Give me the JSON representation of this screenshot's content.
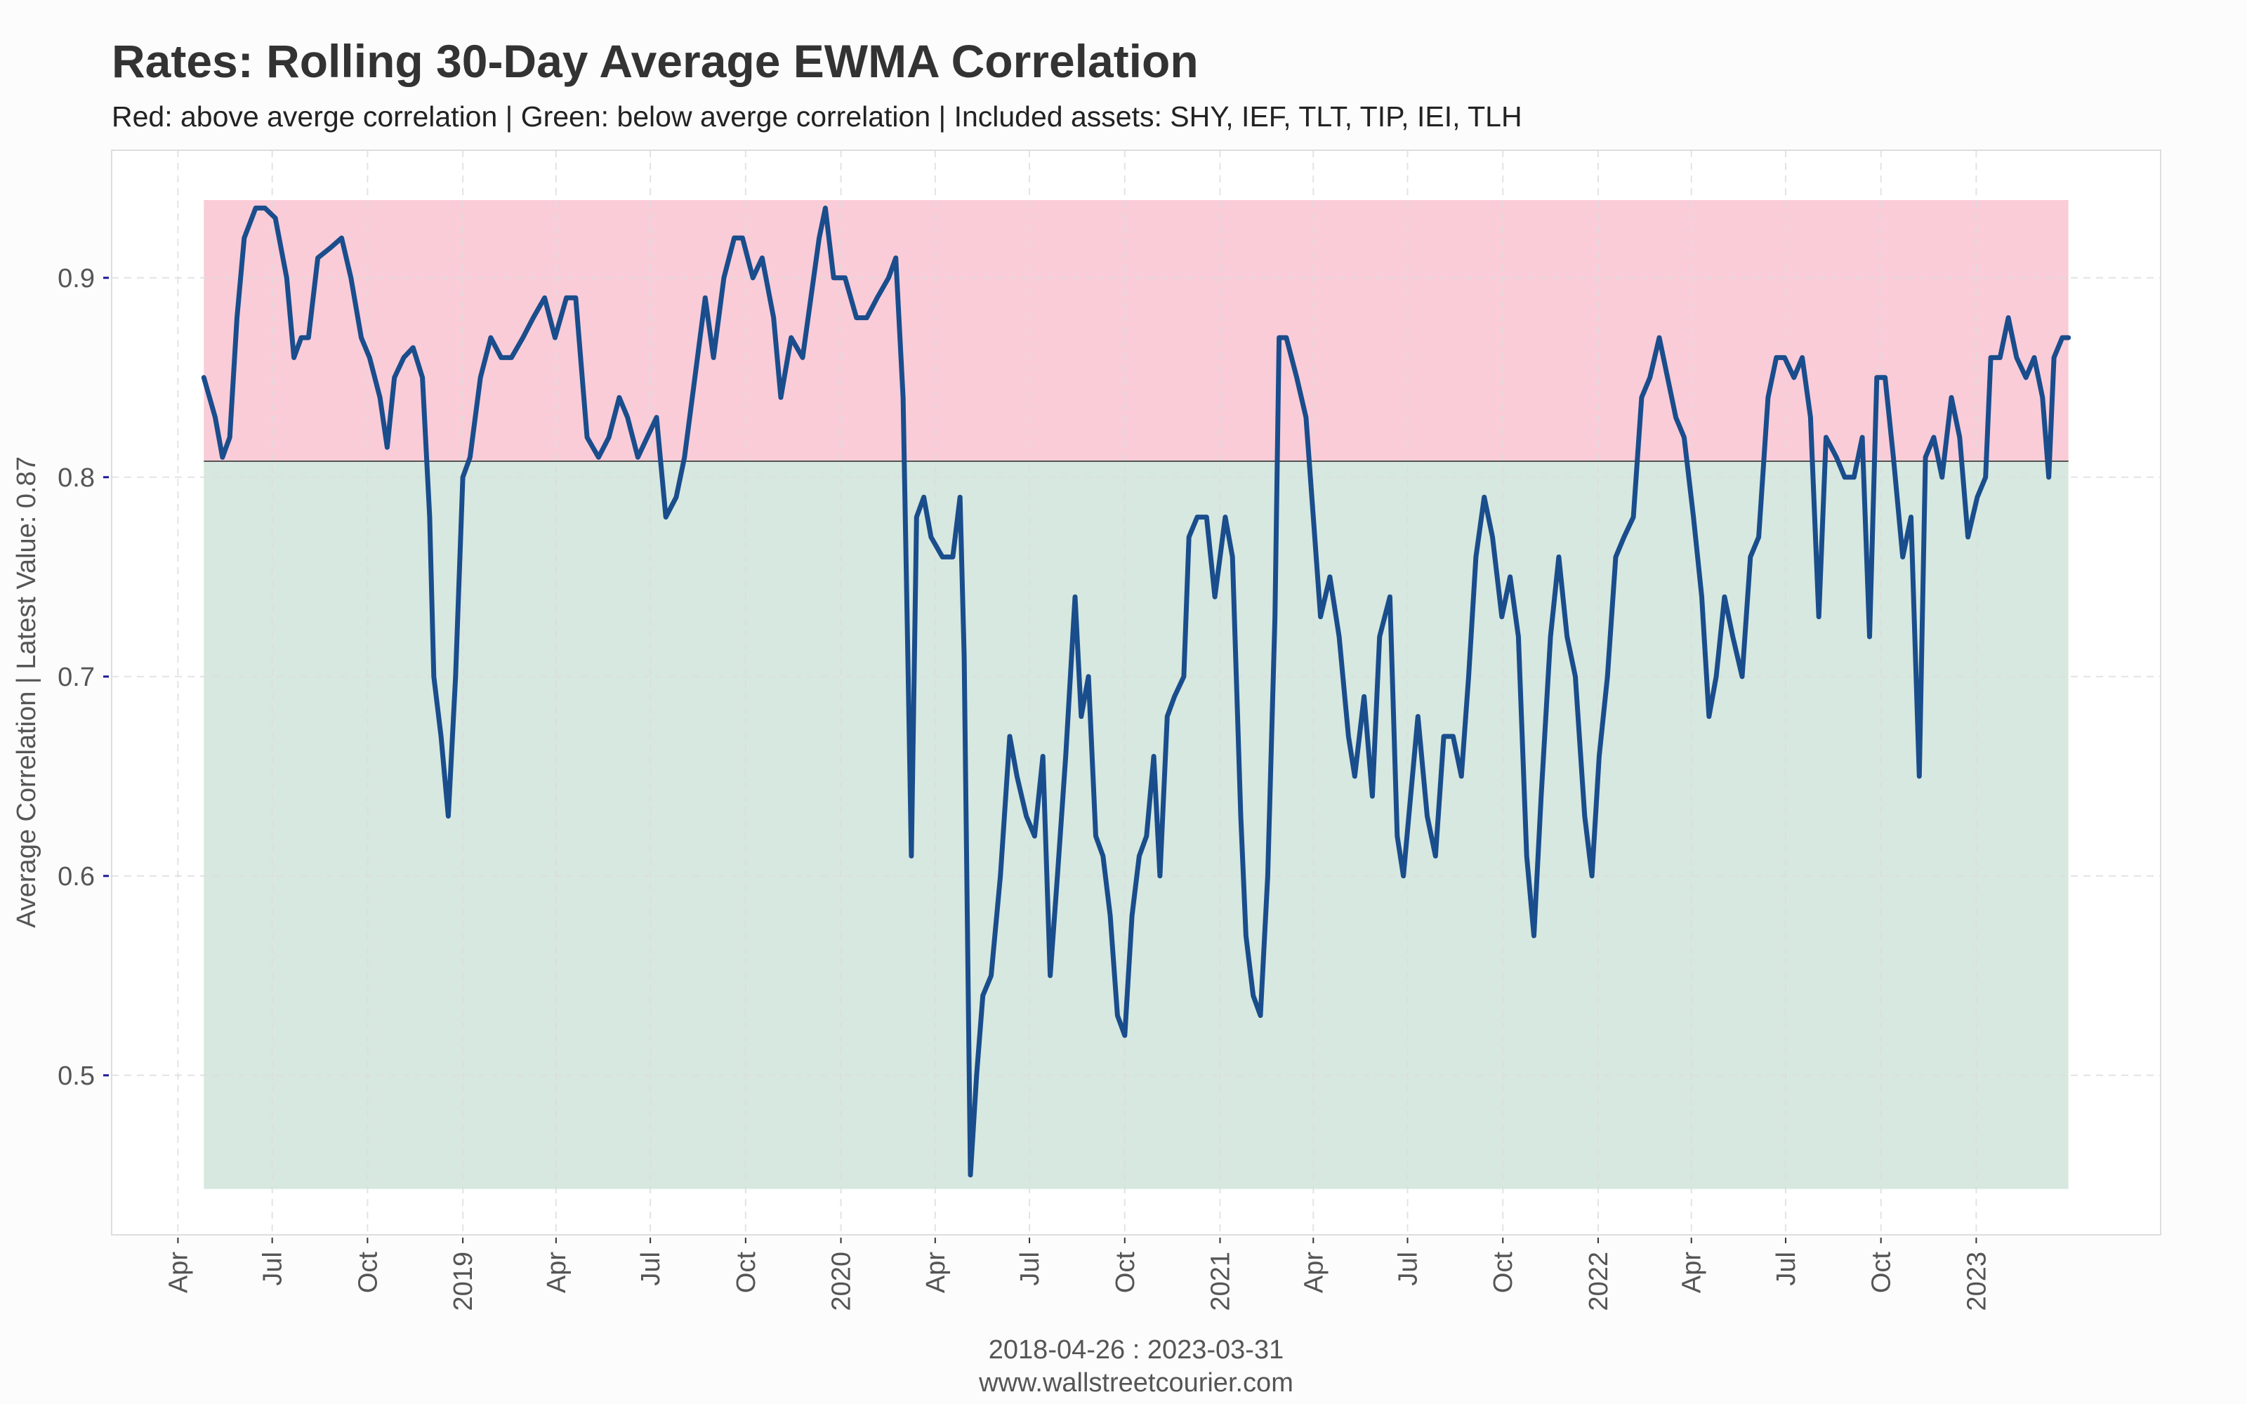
{
  "chart_data": {
    "type": "line",
    "title": "Rates: Rolling 30-Day Average EWMA Correlation",
    "subtitle": "Red: above averge correlation | Green: below averge correlation | Included assets: SHY, IEF, TLT, TIP, IEI, TLH",
    "y_label": "Average Correlation | Latest Value: 0.87",
    "caption": "2018-04-26 : 2023-03-31",
    "source": "www.wallstreetcourier.com",
    "xlim": [
      "2018-01-27",
      "2023-06-28"
    ],
    "ylim": [
      0.42,
      0.964
    ],
    "yticks": [
      0.5,
      0.6,
      0.7,
      0.8,
      0.9
    ],
    "xticks": [
      {
        "value": "2018-04-01",
        "label": "Apr"
      },
      {
        "value": "2018-07-01",
        "label": "Jul"
      },
      {
        "value": "2018-10-01",
        "label": "Oct"
      },
      {
        "value": "2019-01-01",
        "label": "2019"
      },
      {
        "value": "2019-04-01",
        "label": "Apr"
      },
      {
        "value": "2019-07-01",
        "label": "Jul"
      },
      {
        "value": "2019-10-01",
        "label": "Oct"
      },
      {
        "value": "2020-01-01",
        "label": "2020"
      },
      {
        "value": "2020-04-01",
        "label": "Apr"
      },
      {
        "value": "2020-07-01",
        "label": "Jul"
      },
      {
        "value": "2020-10-01",
        "label": "Oct"
      },
      {
        "value": "2021-01-01",
        "label": "2021"
      },
      {
        "value": "2021-04-01",
        "label": "Apr"
      },
      {
        "value": "2021-07-01",
        "label": "Jul"
      },
      {
        "value": "2021-10-01",
        "label": "Oct"
      },
      {
        "value": "2022-01-01",
        "label": "2022"
      },
      {
        "value": "2022-04-01",
        "label": "Apr"
      },
      {
        "value": "2022-07-01",
        "label": "Jul"
      },
      {
        "value": "2022-10-01",
        "label": "Oct"
      },
      {
        "value": "2023-01-01",
        "label": "2023"
      }
    ],
    "grid": true,
    "reference": {
      "average": 0.808,
      "max": 0.939,
      "min": 0.443,
      "above_color": "#f9ccd8",
      "below_color": "#d6e8df",
      "line_color": "#555555"
    },
    "color": "#1a4d8c",
    "x": [
      "2018-04-26",
      "2018-05-07",
      "2018-05-14",
      "2018-05-21",
      "2018-05-28",
      "2018-06-04",
      "2018-06-15",
      "2018-06-24",
      "2018-07-04",
      "2018-07-15",
      "2018-07-22",
      "2018-07-29",
      "2018-08-05",
      "2018-08-14",
      "2018-08-26",
      "2018-09-06",
      "2018-09-15",
      "2018-09-25",
      "2018-10-03",
      "2018-10-13",
      "2018-10-20",
      "2018-10-27",
      "2018-11-05",
      "2018-11-14",
      "2018-11-23",
      "2018-11-30",
      "2018-12-04",
      "2018-12-11",
      "2018-12-18",
      "2018-12-25",
      "2019-01-01",
      "2019-01-08",
      "2019-01-18",
      "2019-01-28",
      "2019-02-07",
      "2019-02-17",
      "2019-02-28",
      "2019-03-10",
      "2019-03-21",
      "2019-03-31",
      "2019-04-11",
      "2019-04-20",
      "2019-05-01",
      "2019-05-12",
      "2019-05-22",
      "2019-06-01",
      "2019-06-09",
      "2019-06-19",
      "2019-06-28",
      "2019-07-07",
      "2019-07-16",
      "2019-07-26",
      "2019-08-03",
      "2019-08-13",
      "2019-08-23",
      "2019-08-31",
      "2019-09-10",
      "2019-09-20",
      "2019-09-28",
      "2019-10-08",
      "2019-10-17",
      "2019-10-28",
      "2019-11-04",
      "2019-11-14",
      "2019-11-25",
      "2019-12-03",
      "2019-12-11",
      "2019-12-17",
      "2019-12-25",
      "2020-01-05",
      "2020-01-16",
      "2020-01-26",
      "2020-02-05",
      "2020-02-16",
      "2020-02-23",
      "2020-03-01",
      "2020-03-06",
      "2020-03-09",
      "2020-03-14",
      "2020-03-21",
      "2020-03-28",
      "2020-04-08",
      "2020-04-18",
      "2020-04-25",
      "2020-04-29",
      "2020-05-05",
      "2020-05-11",
      "2020-05-17",
      "2020-05-25",
      "2020-06-03",
      "2020-06-12",
      "2020-06-19",
      "2020-06-28",
      "2020-07-06",
      "2020-07-14",
      "2020-07-21",
      "2020-07-28",
      "2020-08-05",
      "2020-08-14",
      "2020-08-20",
      "2020-08-27",
      "2020-09-03",
      "2020-09-10",
      "2020-09-17",
      "2020-09-24",
      "2020-10-01",
      "2020-10-08",
      "2020-10-15",
      "2020-10-22",
      "2020-10-29",
      "2020-11-04",
      "2020-11-11",
      "2020-11-18",
      "2020-11-27",
      "2020-12-02",
      "2020-12-10",
      "2020-12-19",
      "2020-12-27",
      "2021-01-06",
      "2021-01-13",
      "2021-01-21",
      "2021-01-26",
      "2021-02-02",
      "2021-02-09",
      "2021-02-16",
      "2021-02-23",
      "2021-02-27",
      "2021-03-06",
      "2021-03-16",
      "2021-03-25",
      "2021-04-01",
      "2021-04-08",
      "2021-04-17",
      "2021-04-26",
      "2021-05-05",
      "2021-05-11",
      "2021-05-20",
      "2021-05-28",
      "2021-06-04",
      "2021-06-14",
      "2021-06-21",
      "2021-06-27",
      "2021-07-04",
      "2021-07-11",
      "2021-07-20",
      "2021-07-28",
      "2021-08-05",
      "2021-08-14",
      "2021-08-22",
      "2021-08-29",
      "2021-09-05",
      "2021-09-13",
      "2021-09-21",
      "2021-09-30",
      "2021-10-08",
      "2021-10-16",
      "2021-10-24",
      "2021-10-31",
      "2021-11-07",
      "2021-11-16",
      "2021-11-24",
      "2021-12-02",
      "2021-12-10",
      "2021-12-19",
      "2021-12-26",
      "2022-01-02",
      "2022-01-10",
      "2022-01-18",
      "2022-01-26",
      "2022-02-04",
      "2022-02-12",
      "2022-02-20",
      "2022-03-01",
      "2022-03-09",
      "2022-03-17",
      "2022-03-25",
      "2022-04-03",
      "2022-04-11",
      "2022-04-18",
      "2022-04-25",
      "2022-05-03",
      "2022-05-11",
      "2022-05-20",
      "2022-05-28",
      "2022-06-05",
      "2022-06-14",
      "2022-06-22",
      "2022-06-30",
      "2022-07-09",
      "2022-07-17",
      "2022-07-25",
      "2022-08-02",
      "2022-08-09",
      "2022-08-19",
      "2022-08-27",
      "2022-09-05",
      "2022-09-13",
      "2022-09-20",
      "2022-09-27",
      "2022-10-05",
      "2022-10-13",
      "2022-10-22",
      "2022-10-30",
      "2022-11-07",
      "2022-11-13",
      "2022-11-21",
      "2022-11-29",
      "2022-12-08",
      "2022-12-16",
      "2022-12-24",
      "2023-01-02",
      "2023-01-10",
      "2023-01-15",
      "2023-01-24",
      "2023-02-01",
      "2023-02-09",
      "2023-02-18",
      "2023-02-26",
      "2023-03-06",
      "2023-03-12",
      "2023-03-17",
      "2023-03-25",
      "2023-03-31"
    ],
    "values": [
      0.85,
      0.83,
      0.81,
      0.82,
      0.88,
      0.92,
      0.935,
      0.935,
      0.93,
      0.9,
      0.86,
      0.87,
      0.87,
      0.91,
      0.915,
      0.92,
      0.9,
      0.87,
      0.86,
      0.84,
      0.815,
      0.85,
      0.86,
      0.865,
      0.85,
      0.78,
      0.7,
      0.67,
      0.63,
      0.7,
      0.8,
      0.81,
      0.85,
      0.87,
      0.86,
      0.86,
      0.87,
      0.88,
      0.89,
      0.87,
      0.89,
      0.89,
      0.82,
      0.81,
      0.82,
      0.84,
      0.83,
      0.81,
      0.82,
      0.83,
      0.78,
      0.79,
      0.81,
      0.85,
      0.89,
      0.86,
      0.9,
      0.92,
      0.92,
      0.9,
      0.91,
      0.88,
      0.84,
      0.87,
      0.86,
      0.89,
      0.92,
      0.935,
      0.9,
      0.9,
      0.88,
      0.88,
      0.89,
      0.9,
      0.91,
      0.84,
      0.7,
      0.61,
      0.78,
      0.79,
      0.77,
      0.76,
      0.76,
      0.79,
      0.71,
      0.45,
      0.5,
      0.54,
      0.55,
      0.6,
      0.67,
      0.65,
      0.63,
      0.62,
      0.66,
      0.55,
      0.6,
      0.66,
      0.74,
      0.68,
      0.7,
      0.62,
      0.61,
      0.58,
      0.53,
      0.52,
      0.58,
      0.61,
      0.62,
      0.66,
      0.6,
      0.68,
      0.69,
      0.7,
      0.77,
      0.78,
      0.78,
      0.74,
      0.78,
      0.76,
      0.63,
      0.57,
      0.54,
      0.53,
      0.6,
      0.73,
      0.87,
      0.87,
      0.85,
      0.83,
      0.78,
      0.73,
      0.75,
      0.72,
      0.67,
      0.65,
      0.69,
      0.64,
      0.72,
      0.74,
      0.62,
      0.6,
      0.64,
      0.68,
      0.63,
      0.61,
      0.67,
      0.67,
      0.65,
      0.7,
      0.76,
      0.79,
      0.77,
      0.73,
      0.75,
      0.72,
      0.61,
      0.57,
      0.64,
      0.72,
      0.76,
      0.72,
      0.7,
      0.63,
      0.6,
      0.66,
      0.7,
      0.76,
      0.77,
      0.78,
      0.84,
      0.85,
      0.87,
      0.85,
      0.83,
      0.82,
      0.78,
      0.74,
      0.68,
      0.7,
      0.74,
      0.72,
      0.7,
      0.76,
      0.77,
      0.84,
      0.86,
      0.86,
      0.85,
      0.86,
      0.83,
      0.73,
      0.82,
      0.81,
      0.8,
      0.8,
      0.82,
      0.72,
      0.85,
      0.85,
      0.81,
      0.76,
      0.78,
      0.65,
      0.81,
      0.82,
      0.8,
      0.84,
      0.82,
      0.77,
      0.79,
      0.8,
      0.86,
      0.86,
      0.88,
      0.86,
      0.85,
      0.86,
      0.84,
      0.8,
      0.86,
      0.87,
      0.87
    ]
  }
}
